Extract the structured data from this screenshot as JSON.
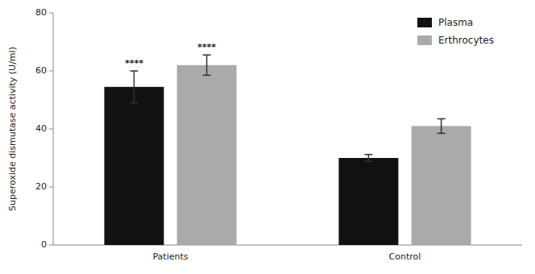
{
  "chart_data": {
    "type": "bar",
    "y_label": "Superoxide dismutase activity (U/ml)",
    "categories": [
      "Patients",
      "Control"
    ],
    "series": [
      {
        "name": "Plasma",
        "color": "#111111",
        "values": [
          54.5,
          30.0
        ],
        "errors": [
          5.5,
          1.2
        ]
      },
      {
        "name": "Erthrocytes",
        "color": "#aaaaaa",
        "values": [
          62.0,
          41.0
        ],
        "errors": [
          3.5,
          2.5
        ]
      }
    ],
    "annotations": [
      {
        "text": "****",
        "series": 0,
        "category": 0
      },
      {
        "text": "****",
        "series": 1,
        "category": 0
      }
    ],
    "ylim": [
      0,
      80
    ],
    "yticks": [
      0,
      20,
      40,
      60,
      80
    ],
    "grid": false,
    "legend": "upper right"
  }
}
